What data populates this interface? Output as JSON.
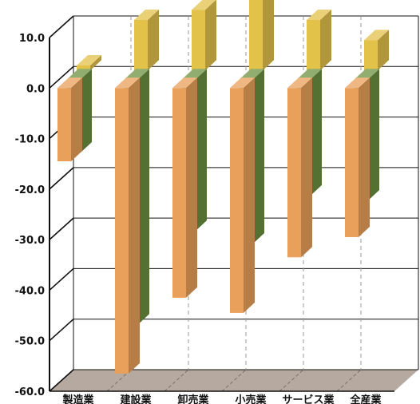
{
  "chart_data": {
    "type": "bar",
    "title": "",
    "xlabel": "",
    "ylabel": "",
    "ylim": [
      -60,
      10
    ],
    "yticks": [
      "10.0",
      "0.0",
      "-10.0",
      "-20.0",
      "-30.0",
      "-40.0",
      "-50.0",
      "-60.0"
    ],
    "grid": true,
    "three_d": true,
    "categories": [
      "製造業",
      "建設業",
      "卸売業",
      "小売業",
      "サービス業",
      "全産業"
    ],
    "series": [
      {
        "values": [
          -14.5,
          -56.5,
          -41.5,
          -44.5,
          -33.5,
          -29.5
        ],
        "color": "#E9A05A"
      },
      {
        "values": [
          -14.5,
          -48.5,
          -30.0,
          -32.5,
          -23.0,
          -24.0
        ],
        "color": "#6D9140"
      },
      {
        "values": [
          1.0,
          10.0,
          12.0,
          14.0,
          10.0,
          6.0
        ],
        "color": "#E3C24A"
      }
    ],
    "colors": {
      "floor": "#B5A9A0",
      "axis": "#111111",
      "gridline": "#9a9a9a"
    }
  }
}
